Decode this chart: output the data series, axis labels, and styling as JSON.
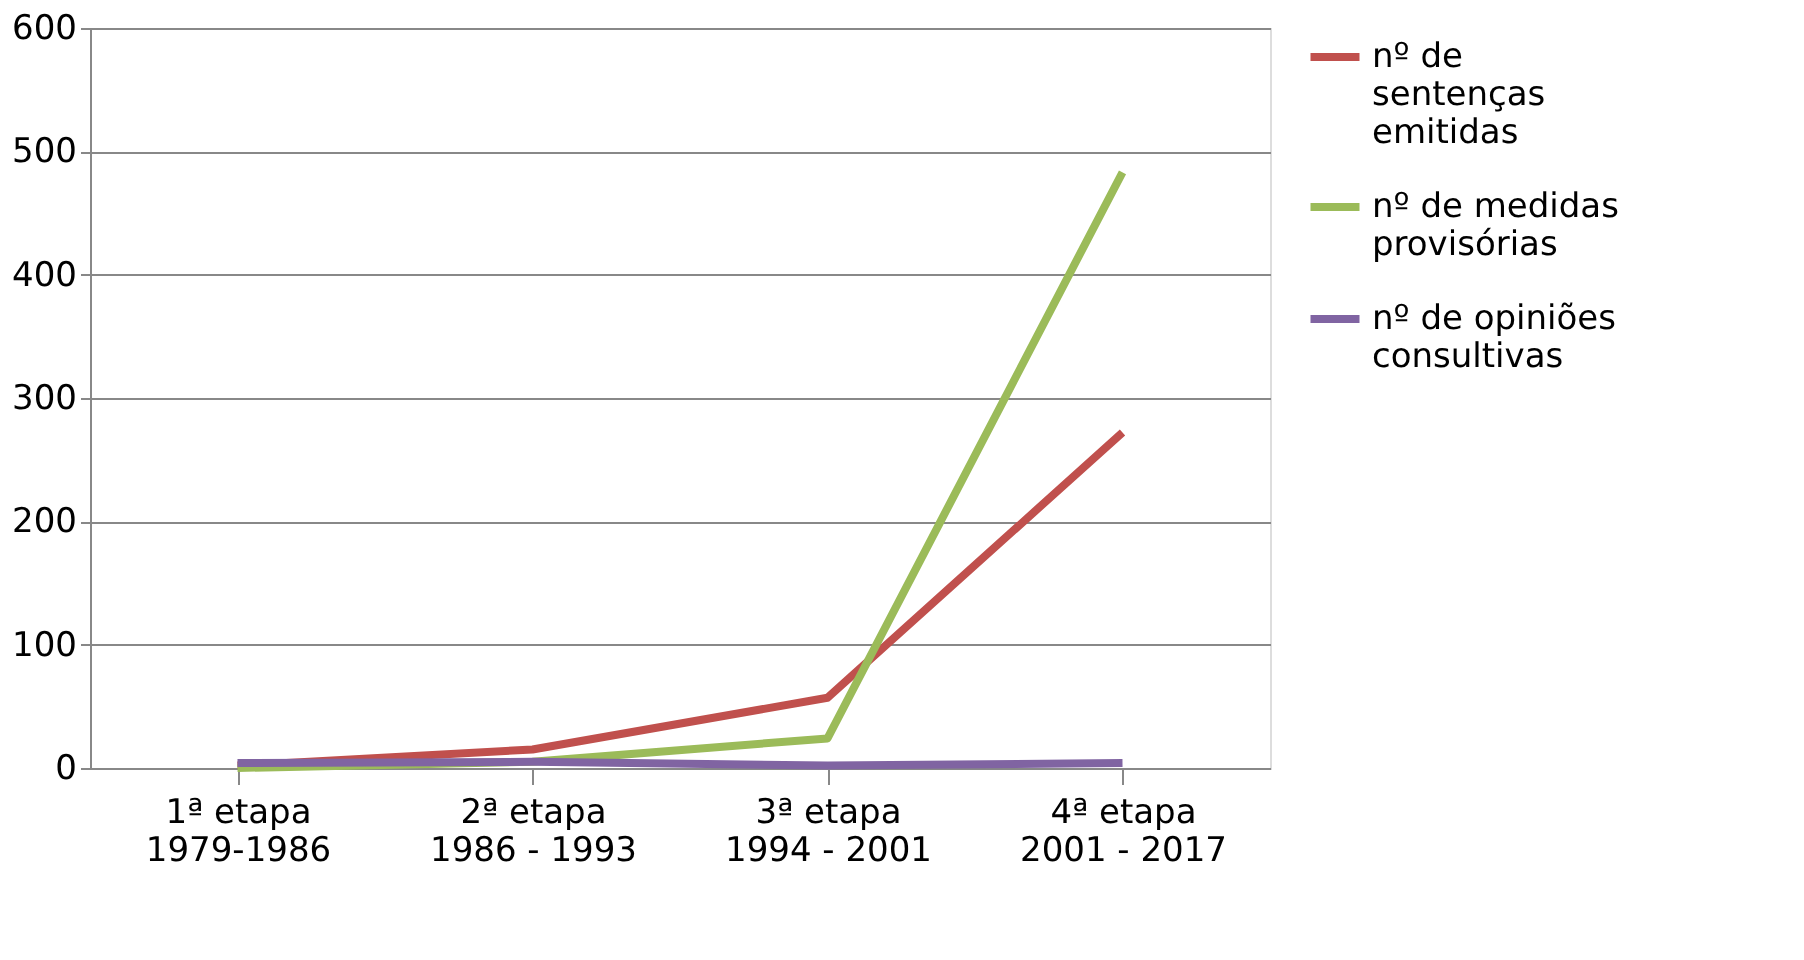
{
  "chart_data": {
    "type": "line",
    "categories": [
      "1ª etapa\n1979-1986",
      "2ª etapa\n1986 - 1993",
      "3ª etapa\n1994 - 2001",
      "4ª etapa\n2001 - 2017"
    ],
    "series": [
      {
        "name": "nº de\nsentenças\nemitidas",
        "color": "#c0504d",
        "values": [
          2,
          15,
          57,
          272
        ]
      },
      {
        "name": "nº de medidas\nprovisórias",
        "color": "#9bbb59",
        "values": [
          0,
          5,
          24,
          483
        ]
      },
      {
        "name": "nº de opiniões\nconsultivas",
        "color": "#8064a2",
        "values": [
          4,
          5,
          2,
          4
        ]
      }
    ],
    "ylim": [
      0,
      600
    ],
    "yticks": [
      0,
      100,
      200,
      300,
      400,
      500,
      600
    ],
    "grid": "y",
    "legend": "right",
    "marker": "none",
    "line_style": "solid"
  }
}
